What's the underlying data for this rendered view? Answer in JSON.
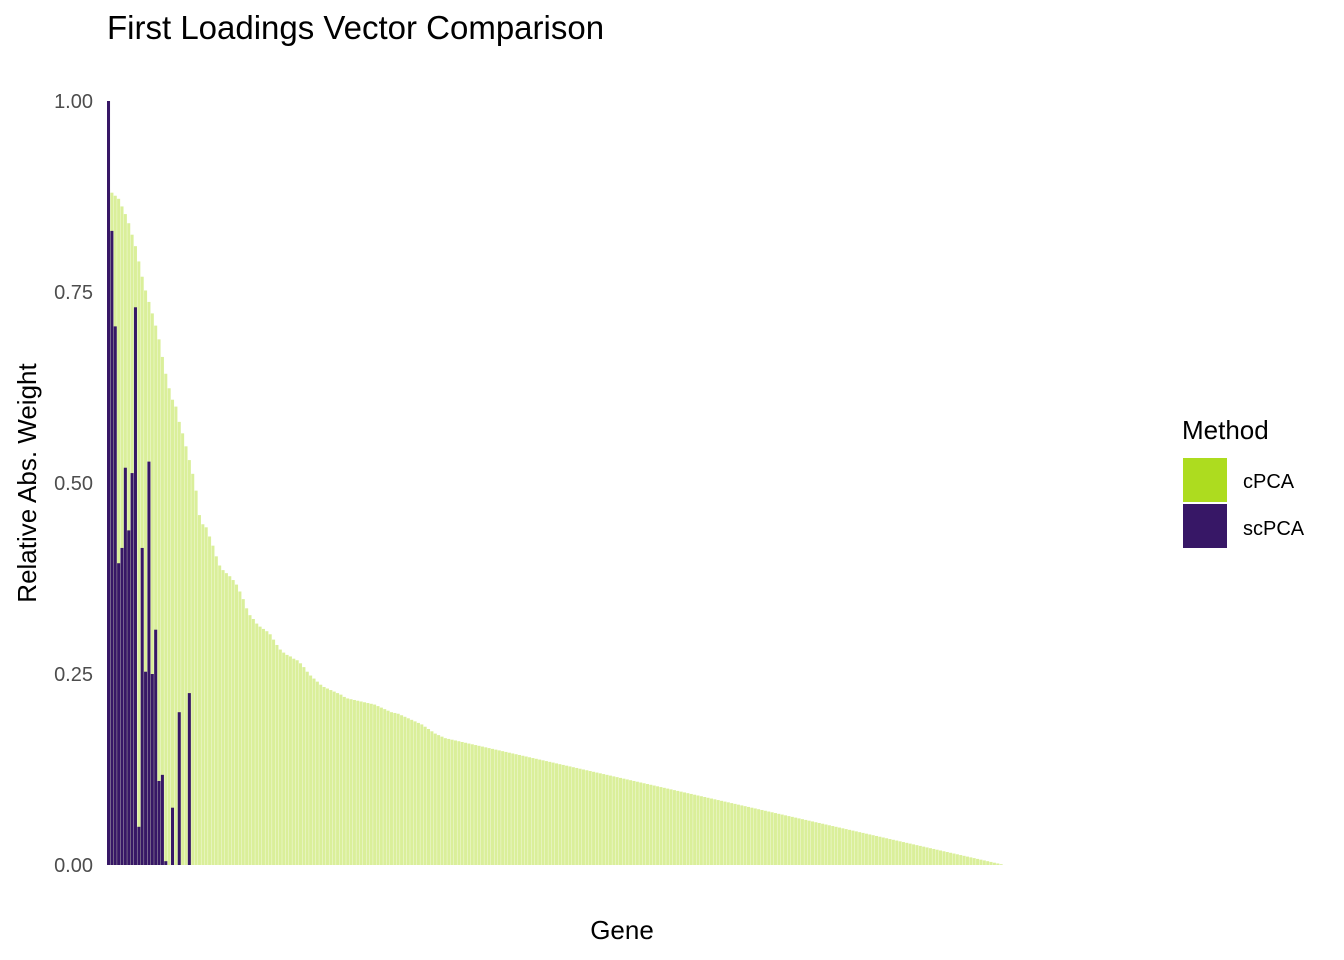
{
  "chart_data": {
    "type": "bar",
    "title": "First Loadings Vector Comparison",
    "xlabel": "Gene",
    "ylabel": "Relative Abs. Weight",
    "ylim": [
      0,
      1
    ],
    "yticks": [
      "0.00",
      "0.25",
      "0.50",
      "0.75",
      "1.00"
    ],
    "x_ticks_shown": false,
    "grid": false,
    "legend": {
      "title": "Method",
      "position": "right",
      "entries": [
        "cPCA",
        "scPCA"
      ]
    },
    "colors": {
      "cPCA": "#addc1f",
      "scPCA": "#371766"
    },
    "bar_fill_opacity": 0.45,
    "n_genes": 304,
    "series": [
      {
        "name": "cPCA",
        "values": [
          0.885,
          0.88,
          0.876,
          0.872,
          0.862,
          0.852,
          0.84,
          0.825,
          0.81,
          0.79,
          0.77,
          0.752,
          0.737,
          0.722,
          0.706,
          0.688,
          0.665,
          0.643,
          0.624,
          0.609,
          0.6,
          0.58,
          0.565,
          0.548,
          0.53,
          0.512,
          0.49,
          0.458,
          0.446,
          0.442,
          0.43,
          0.418,
          0.404,
          0.392,
          0.386,
          0.382,
          0.378,
          0.373,
          0.367,
          0.358,
          0.348,
          0.336,
          0.327,
          0.322,
          0.316,
          0.312,
          0.309,
          0.306,
          0.302,
          0.295,
          0.288,
          0.282,
          0.278,
          0.275,
          0.273,
          0.27,
          0.268,
          0.264,
          0.259,
          0.253,
          0.248,
          0.244,
          0.24,
          0.236,
          0.233,
          0.231,
          0.229,
          0.227,
          0.225,
          0.223,
          0.22,
          0.218,
          0.217,
          0.216,
          0.215,
          0.214,
          0.213,
          0.212,
          0.211,
          0.21,
          0.208,
          0.206,
          0.204,
          0.202,
          0.2,
          0.199,
          0.198,
          0.196,
          0.194,
          0.192,
          0.19,
          0.188,
          0.186,
          0.184,
          0.181,
          0.178,
          0.175,
          0.172,
          0.17,
          0.168,
          0.166,
          0.165,
          0.164,
          0.163,
          0.162,
          0.161,
          0.16,
          0.159,
          0.158,
          0.157,
          0.156,
          0.155,
          0.154,
          0.153,
          0.152,
          0.151,
          0.15,
          0.149,
          0.148,
          0.147,
          0.146,
          0.145,
          0.144,
          0.143,
          0.142,
          0.141,
          0.14,
          0.139,
          0.138,
          0.137,
          0.136,
          0.135,
          0.134,
          0.133,
          0.132,
          0.131,
          0.13,
          0.129,
          0.128,
          0.127,
          0.126,
          0.125,
          0.124,
          0.123,
          0.122,
          0.121,
          0.12,
          0.119,
          0.118,
          0.117,
          0.116,
          0.115,
          0.114,
          0.113,
          0.112,
          0.111,
          0.11,
          0.109,
          0.108,
          0.107,
          0.106,
          0.105,
          0.104,
          0.103,
          0.102,
          0.101,
          0.1,
          0.099,
          0.098,
          0.097,
          0.096,
          0.095,
          0.094,
          0.093,
          0.092,
          0.091,
          0.09,
          0.089,
          0.088,
          0.087,
          0.086,
          0.085,
          0.084,
          0.083,
          0.082,
          0.081,
          0.08,
          0.079,
          0.078,
          0.077,
          0.076,
          0.075,
          0.074,
          0.073,
          0.072,
          0.071,
          0.07,
          0.069,
          0.068,
          0.067,
          0.066,
          0.065,
          0.064,
          0.063,
          0.062,
          0.061,
          0.06,
          0.059,
          0.058,
          0.057,
          0.056,
          0.055,
          0.054,
          0.053,
          0.052,
          0.051,
          0.05,
          0.049,
          0.048,
          0.047,
          0.046,
          0.045,
          0.044,
          0.043,
          0.042,
          0.041,
          0.04,
          0.039,
          0.038,
          0.037,
          0.036,
          0.035,
          0.034,
          0.033,
          0.032,
          0.031,
          0.03,
          0.029,
          0.028,
          0.027,
          0.026,
          0.025,
          0.024,
          0.023,
          0.022,
          0.021,
          0.02,
          0.019,
          0.018,
          0.017,
          0.016,
          0.015,
          0.014,
          0.013,
          0.012,
          0.011,
          0.01,
          0.009,
          0.008,
          0.007,
          0.006,
          0.005,
          0.004,
          0.003,
          0.002,
          0.001,
          0.0
        ]
      },
      {
        "name": "scPCA",
        "values": [
          1.0,
          0.83,
          0.705,
          0.395,
          0.415,
          0.52,
          0.438,
          0.513,
          0.73,
          0.05,
          0.415,
          0.253,
          0.528,
          0.25,
          0.308,
          0.11,
          0.118,
          0.005,
          0,
          0.075,
          0,
          0.2,
          0,
          0,
          0.225
        ]
      }
    ]
  }
}
